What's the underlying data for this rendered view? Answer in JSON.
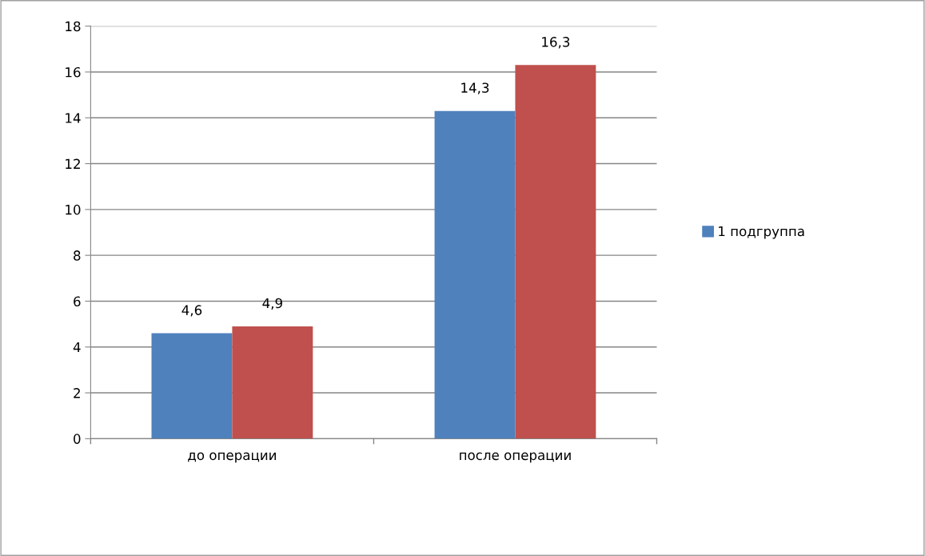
{
  "chart_data": {
    "type": "bar",
    "categories": [
      "до операции",
      "после операции"
    ],
    "series": [
      {
        "name": "1 подгруппа",
        "color": "#4f81bd",
        "values": [
          4.6,
          14.3
        ],
        "value_labels": [
          "4,6",
          "14,3"
        ]
      },
      {
        "color": "#c0504d",
        "values": [
          4.9,
          16.3
        ],
        "value_labels": [
          "4,9",
          "16,3"
        ]
      }
    ],
    "ylim": [
      0,
      18
    ],
    "yticks": [
      0,
      2,
      4,
      6,
      8,
      10,
      12,
      14,
      16,
      18
    ],
    "grid": "y",
    "legend": "right"
  }
}
